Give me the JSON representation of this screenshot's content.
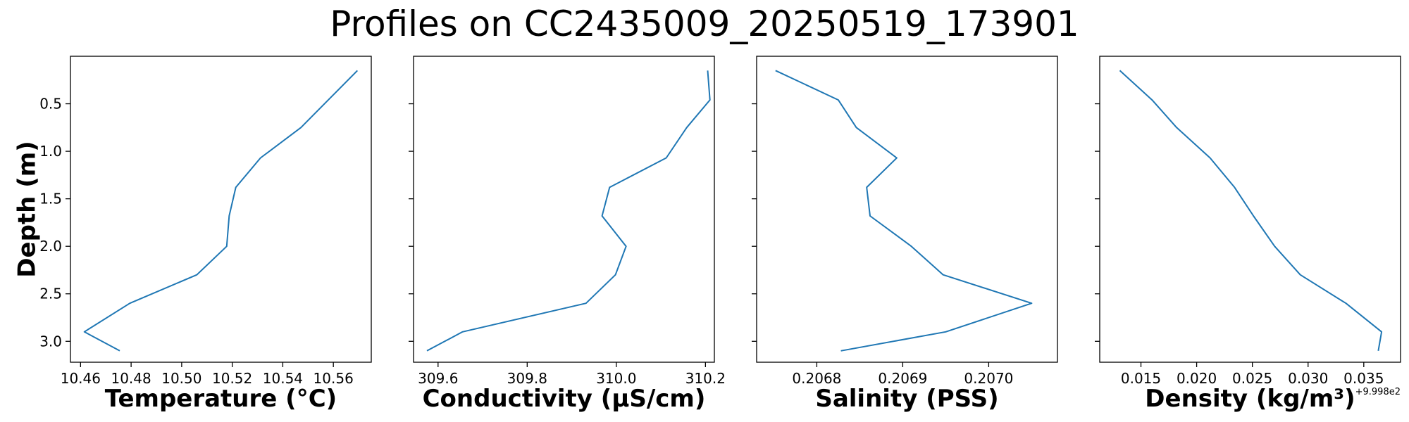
{
  "figure": {
    "title": "Profiles on CC2435009_20250519_173901"
  },
  "chart_data": [
    {
      "type": "line",
      "series_color": "#1f77b4",
      "xlabel": "Temperature (°C)",
      "ylabel": "Depth (m)",
      "xlim": [
        10.456,
        10.575
      ],
      "ylim": [
        3.22,
        0.0
      ],
      "xticks": [
        10.46,
        10.48,
        10.5,
        10.52,
        10.54,
        10.56
      ],
      "xtick_labels": [
        "10.46",
        "10.48",
        "10.50",
        "10.52",
        "10.54",
        "10.56"
      ],
      "yticks": [
        0.5,
        1.0,
        1.5,
        2.0,
        2.5,
        3.0
      ],
      "ytick_labels": [
        "0.5",
        "1.0",
        "1.5",
        "2.0",
        "2.5",
        "3.0"
      ],
      "x": [
        10.5695,
        10.558,
        10.5472,
        10.5312,
        10.5214,
        10.5188,
        10.5178,
        10.506,
        10.4795,
        10.4615,
        10.4755
      ],
      "y": [
        0.15,
        0.46,
        0.75,
        1.07,
        1.38,
        1.68,
        2.0,
        2.3,
        2.6,
        2.9,
        3.1
      ]
    },
    {
      "type": "line",
      "series_color": "#1f77b4",
      "xlabel": "Conductivity (µS/cm)",
      "ylabel": "",
      "xlim": [
        309.545,
        310.22
      ],
      "ylim": [
        3.22,
        0.0
      ],
      "xticks": [
        309.6,
        309.8,
        310.0,
        310.2
      ],
      "xtick_labels": [
        "309.6",
        "309.8",
        "310.0",
        "310.2"
      ],
      "yticks": [
        0.5,
        1.0,
        1.5,
        2.0,
        2.5,
        3.0
      ],
      "x": [
        310.205,
        310.21,
        310.158,
        310.112,
        309.985,
        309.968,
        310.022,
        309.998,
        309.932,
        309.655,
        309.575
      ],
      "y": [
        0.15,
        0.46,
        0.75,
        1.07,
        1.38,
        1.68,
        2.0,
        2.3,
        2.6,
        2.9,
        3.1
      ]
    },
    {
      "type": "line",
      "series_color": "#1f77b4",
      "xlabel": "Salinity (PSS)",
      "ylabel": "",
      "xlim": [
        0.20673,
        0.20708
      ],
      "ylim": [
        3.22,
        0.0
      ],
      "xticks": [
        0.2068,
        0.2069,
        0.207
      ],
      "xtick_labels": [
        "0.2068",
        "0.2069",
        "0.2070"
      ],
      "yticks": [
        0.5,
        1.0,
        1.5,
        2.0,
        2.5,
        3.0
      ],
      "x": [
        0.206752,
        0.206825,
        0.206846,
        0.206893,
        0.206858,
        0.206862,
        0.20691,
        0.206947,
        0.20705,
        0.20695,
        0.206828
      ],
      "y": [
        0.15,
        0.46,
        0.75,
        1.07,
        1.38,
        1.68,
        2.0,
        2.3,
        2.6,
        2.9,
        3.1
      ]
    },
    {
      "type": "line",
      "series_color": "#1f77b4",
      "xlabel": "Density (kg/m³)",
      "ylabel": "",
      "x_offset_label": "+9.998e2",
      "xlim": [
        0.0113,
        0.0383
      ],
      "ylim": [
        3.22,
        0.0
      ],
      "xticks": [
        0.015,
        0.02,
        0.025,
        0.03,
        0.035
      ],
      "xtick_labels": [
        "0.015",
        "0.020",
        "0.025",
        "0.030",
        "0.035"
      ],
      "yticks": [
        0.5,
        1.0,
        1.5,
        2.0,
        2.5,
        3.0
      ],
      "x": [
        0.0131,
        0.016,
        0.0182,
        0.0212,
        0.0234,
        0.0251,
        0.027,
        0.0293,
        0.0334,
        0.0366,
        0.0363
      ],
      "y": [
        0.15,
        0.46,
        0.75,
        1.07,
        1.38,
        1.68,
        2.0,
        2.3,
        2.6,
        2.9,
        3.1
      ]
    }
  ]
}
